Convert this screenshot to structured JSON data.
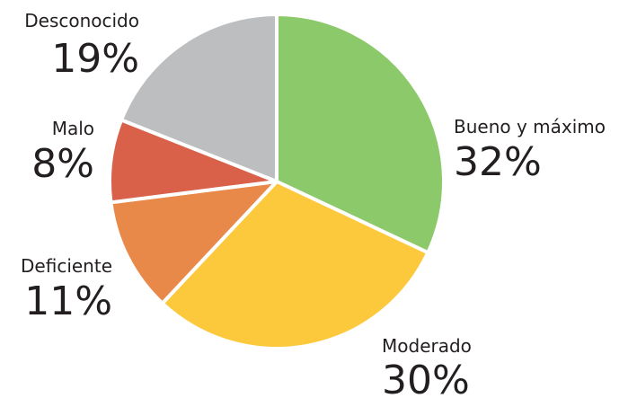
{
  "chart_data": {
    "type": "pie",
    "categories": [
      "Bueno y máximo",
      "Moderado",
      "Deficiente",
      "Malo",
      "Desconocido"
    ],
    "values": [
      32,
      30,
      11,
      8,
      19
    ],
    "value_labels": [
      "32%",
      "30%",
      "11%",
      "8%",
      "19%"
    ],
    "colors": [
      "#8cc96a",
      "#fdc93c",
      "#e8894a",
      "#d9614a",
      "#bcbec0"
    ]
  }
}
